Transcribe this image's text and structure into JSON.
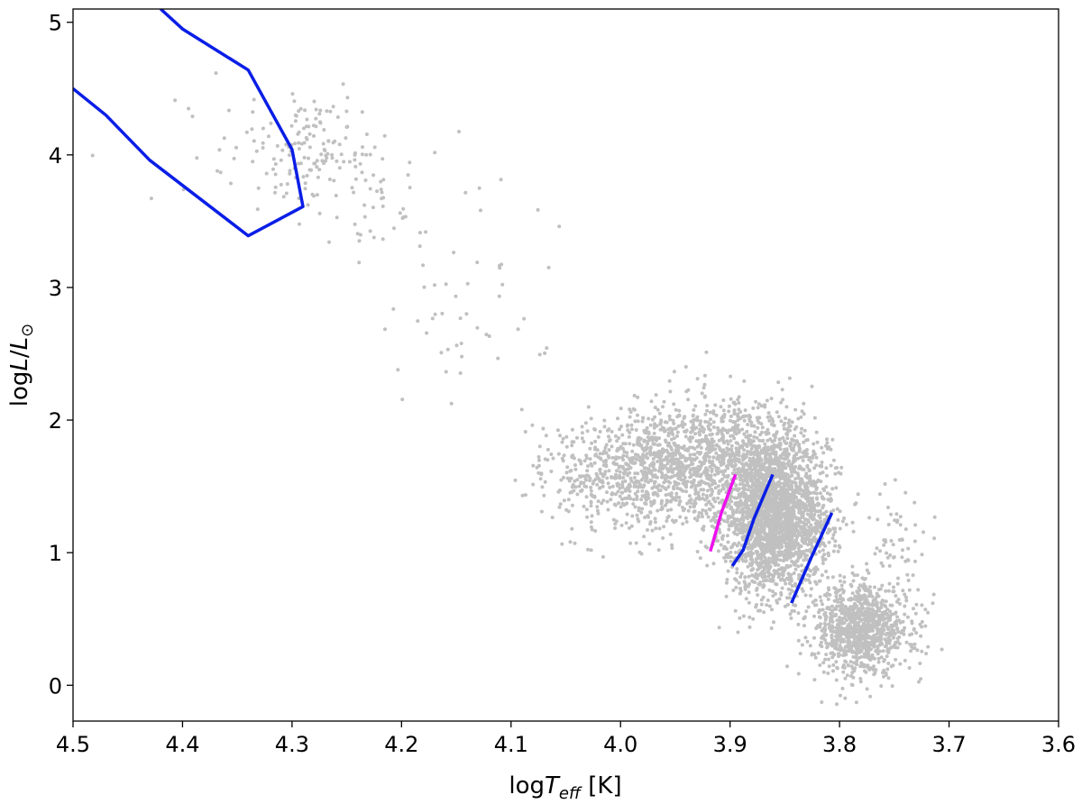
{
  "chart_data": {
    "type": "scatter",
    "title": "",
    "xlabel": "logT_eff [K]",
    "ylabel": "logL/L_⊙",
    "xlim": [
      4.5,
      3.6
    ],
    "ylim": [
      -0.27,
      5.1
    ],
    "x_reversed": true,
    "grid": false,
    "legend": "none",
    "xticks": [
      4.5,
      4.4,
      4.3,
      4.2,
      4.1,
      4.0,
      3.9,
      3.8,
      3.7,
      3.6
    ],
    "xtick_labels": [
      "4.5",
      "4.4",
      "4.3",
      "4.2",
      "4.1",
      "4.0",
      "3.9",
      "3.8",
      "3.7",
      "3.6"
    ],
    "yticks": [
      0,
      1,
      2,
      3,
      4,
      5
    ],
    "ytick_labels": [
      "0",
      "1",
      "2",
      "3",
      "4",
      "5"
    ],
    "series": [
      {
        "kind": "line",
        "color": "#0a1ee6",
        "points": [
          [
            4.5,
            4.5
          ],
          [
            4.47,
            4.3
          ],
          [
            4.43,
            3.96
          ],
          [
            4.34,
            3.39
          ],
          [
            4.29,
            3.61
          ],
          [
            4.3,
            4.04
          ],
          [
            4.32,
            4.34
          ],
          [
            4.34,
            4.64
          ],
          [
            4.4,
            4.95
          ],
          [
            4.42,
            5.1
          ]
        ]
      },
      {
        "kind": "line",
        "color": "#ee10ee",
        "points": [
          [
            3.918,
            1.01
          ],
          [
            3.908,
            1.3
          ],
          [
            3.895,
            1.59
          ]
        ]
      },
      {
        "kind": "line",
        "color": "#0a1ee6",
        "points": [
          [
            3.898,
            0.9
          ],
          [
            3.888,
            1.02
          ],
          [
            3.878,
            1.26
          ],
          [
            3.861,
            1.59
          ]
        ]
      },
      {
        "kind": "line",
        "color": "#0a1ee6",
        "points": [
          [
            3.844,
            0.62
          ],
          [
            3.826,
            0.96
          ],
          [
            3.807,
            1.3
          ]
        ]
      },
      {
        "kind": "scatter",
        "color": "#c0c0c0",
        "generated": true,
        "note_groups": [
          {
            "cx": 3.86,
            "cy": 1.3,
            "sx": 0.024,
            "sy": 0.3,
            "n": 2600
          },
          {
            "cx": 3.78,
            "cy": 0.42,
            "sx": 0.022,
            "sy": 0.16,
            "n": 1000
          },
          {
            "cx": 3.96,
            "cy": 1.62,
            "sx": 0.035,
            "sy": 0.22,
            "n": 900
          },
          {
            "cx": 3.9,
            "cy": 1.85,
            "sx": 0.03,
            "sy": 0.2,
            "n": 350
          },
          {
            "cx": 4.03,
            "cy": 1.6,
            "sx": 0.03,
            "sy": 0.22,
            "n": 200
          },
          {
            "cx": 3.75,
            "cy": 1.1,
            "sx": 0.015,
            "sy": 0.2,
            "n": 60
          },
          {
            "cx": 4.28,
            "cy": 4.05,
            "sx": 0.02,
            "sy": 0.2,
            "n": 120
          },
          {
            "cx": 4.22,
            "cy": 3.75,
            "sx": 0.025,
            "sy": 0.25,
            "n": 50
          },
          {
            "cx": 4.14,
            "cy": 3.0,
            "sx": 0.04,
            "sy": 0.4,
            "n": 50
          },
          {
            "cx": 4.35,
            "cy": 4.0,
            "sx": 0.05,
            "sy": 0.3,
            "n": 30
          }
        ]
      }
    ]
  }
}
